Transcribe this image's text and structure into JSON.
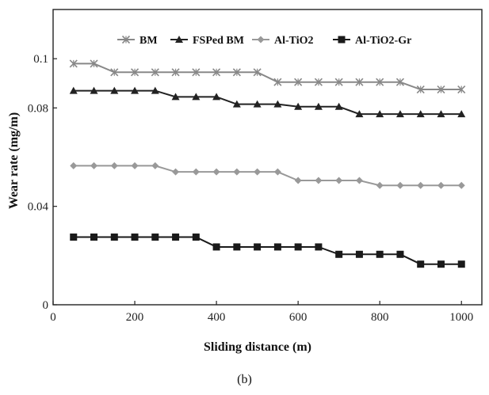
{
  "chart_data": {
    "type": "line",
    "title": "",
    "xlabel": "Sliding distance (m)",
    "ylabel": "Wear rate (mg/m)",
    "xlim": [
      0,
      1050
    ],
    "ylim": [
      0,
      0.12
    ],
    "xticks": [
      0,
      200,
      400,
      600,
      800,
      1000
    ],
    "yticks": [
      0,
      0.04,
      0.08,
      0.1
    ],
    "ytick_labels": [
      "0",
      "0.04",
      "0.08",
      "0.1"
    ],
    "grid": false,
    "legend_position": "top",
    "x": [
      50,
      100,
      150,
      200,
      250,
      300,
      350,
      400,
      450,
      500,
      550,
      600,
      650,
      700,
      750,
      800,
      850,
      900,
      950,
      1000
    ],
    "series": [
      {
        "name": "BM",
        "marker": "x",
        "color": "#888888",
        "values": [
          0.098,
          0.098,
          0.0945,
          0.0945,
          0.0945,
          0.0945,
          0.0945,
          0.0945,
          0.0945,
          0.0945,
          0.0905,
          0.0905,
          0.0905,
          0.0905,
          0.0905,
          0.0905,
          0.0905,
          0.0875,
          0.0875,
          0.0875
        ]
      },
      {
        "name": "FSPed BM",
        "marker": "triangle",
        "color": "#222222",
        "values": [
          0.087,
          0.087,
          0.087,
          0.087,
          0.087,
          0.0845,
          0.0845,
          0.0845,
          0.0815,
          0.0815,
          0.0815,
          0.0805,
          0.0805,
          0.0805,
          0.0775,
          0.0775,
          0.0775,
          0.0775,
          0.0775,
          0.0775
        ]
      },
      {
        "name": "Al-TiO2",
        "marker": "diamond",
        "color": "#999999",
        "values": [
          0.0565,
          0.0565,
          0.0565,
          0.0565,
          0.0565,
          0.054,
          0.054,
          0.054,
          0.054,
          0.054,
          0.054,
          0.0505,
          0.0505,
          0.0505,
          0.0505,
          0.0485,
          0.0485,
          0.0485,
          0.0485,
          0.0485
        ]
      },
      {
        "name": "Al-TiO2-Gr",
        "marker": "square",
        "color": "#1a1a1a",
        "values": [
          0.0275,
          0.0275,
          0.0275,
          0.0275,
          0.0275,
          0.0275,
          0.0275,
          0.0235,
          0.0235,
          0.0235,
          0.0235,
          0.0235,
          0.0235,
          0.0205,
          0.0205,
          0.0205,
          0.0205,
          0.0165,
          0.0165,
          0.0165
        ]
      }
    ]
  },
  "caption": "(b)"
}
